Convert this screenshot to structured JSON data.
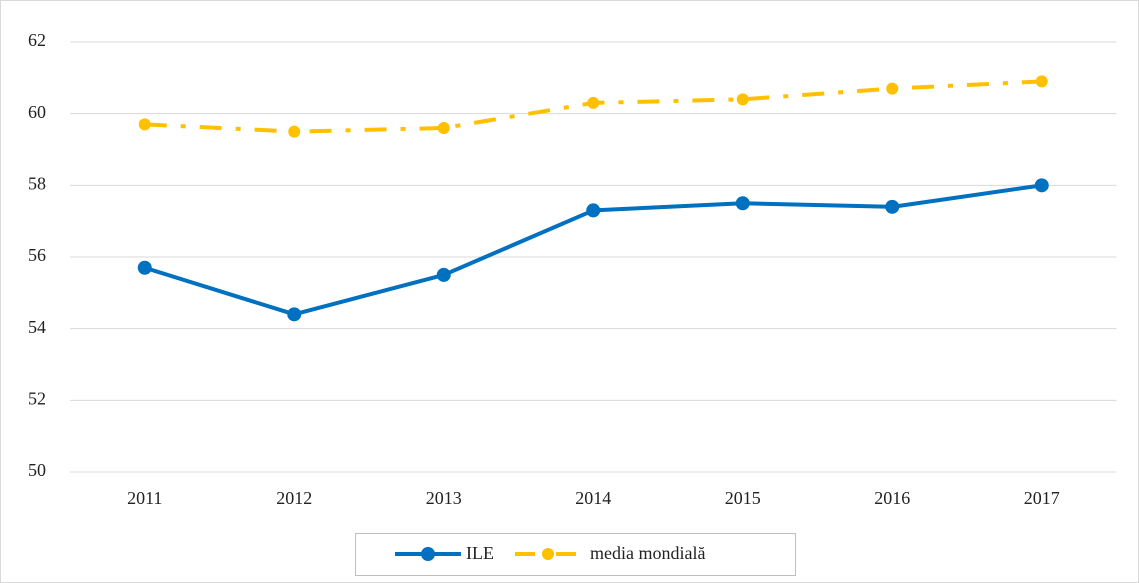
{
  "chart_data": {
    "type": "line",
    "categories": [
      "2011",
      "2012",
      "2013",
      "2014",
      "2015",
      "2016",
      "2017"
    ],
    "series": [
      {
        "name": "ILE",
        "color": "#0070c0",
        "values": [
          55.7,
          54.4,
          55.5,
          57.3,
          57.5,
          57.4,
          58.0
        ]
      },
      {
        "name": "media mondială",
        "color": "#ffc000",
        "values": [
          59.7,
          59.5,
          59.6,
          60.3,
          60.4,
          60.7,
          60.9
        ]
      }
    ],
    "ylim": [
      50,
      62
    ],
    "yticks": [
      50,
      52,
      54,
      56,
      58,
      60,
      62
    ],
    "grid": true,
    "legend": "bottom"
  }
}
